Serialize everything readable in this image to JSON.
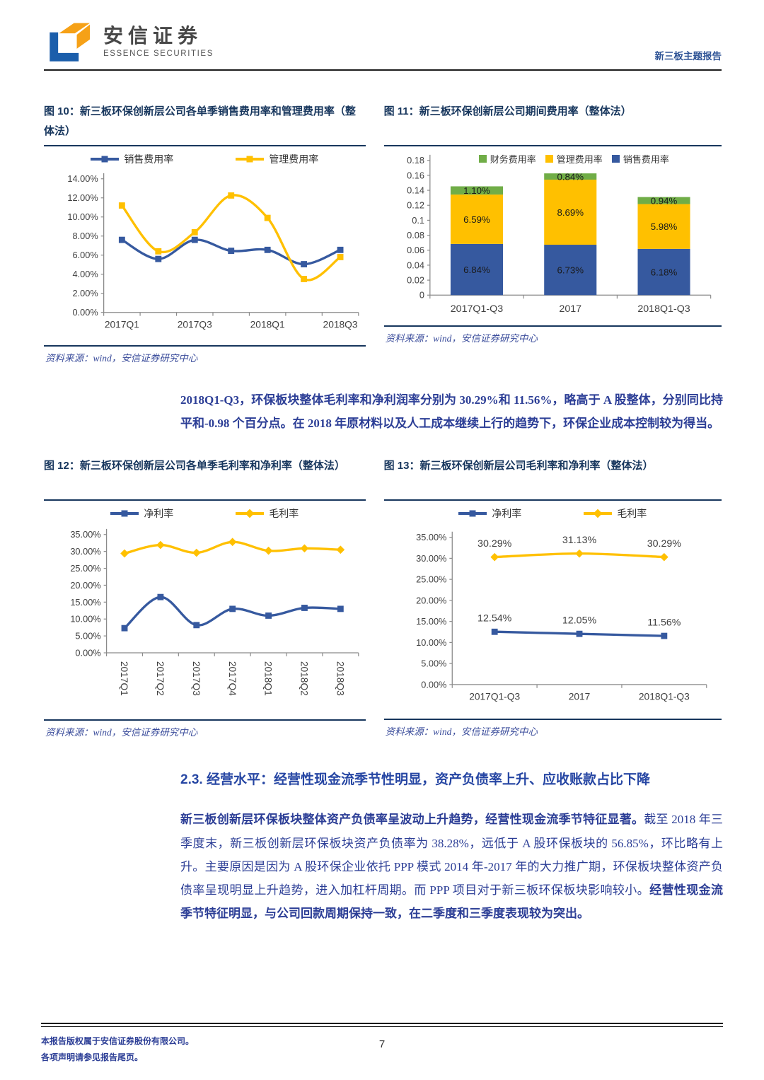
{
  "header": {
    "brand_cn": "安信证券",
    "brand_en": "ESSENCE SECURITIES",
    "report_tag": "新三板主题报告"
  },
  "figures": {
    "f10": {
      "title": "图 10：新三板环保创新层公司各单季销售费用率和管理费用率（整体法）",
      "source": "资料来源：wind，安信证券研究中心"
    },
    "f11": {
      "title": "图 11：新三板环保创新层公司期间费用率（整体法）",
      "source": "资料来源：wind，安信证券研究中心"
    },
    "f12": {
      "title": "图 12：新三板环保创新层公司各单季毛利率和净利率（整体法）",
      "source": "资料来源：wind，安信证券研究中心"
    },
    "f13": {
      "title": "图 13：新三板环保创新层公司毛利率和净利率（整体法）",
      "source": "资料来源：wind，安信证券研究中心"
    }
  },
  "paragraph1": "2018Q1-Q3，环保板块整体毛利率和净利润率分别为 30.29%和 11.56%，略高于 A 股整体，分别同比持平和-0.98 个百分点。在 2018 年原材料以及人工成本继续上行的趋势下，环保企业成本控制较为得当。",
  "section": {
    "title": "2.3. 经营水平：经营性现金流季节性明显，资产负债率上升、应收账款占比下降"
  },
  "paragraph2": {
    "bold1": "新三板创新层环保板块整体资产负债率呈波动上升趋势，经营性现金流季节特征显著。",
    "normal": "截至 2018 年三季度末，新三板创新层环保板块资产负债率为 38.28%，远低于 A 股环保板块的 56.85%，环比略有上升。主要原因是因为 A 股环保企业依托 PPP 模式 2014 年-2017 年的大力推广期，环保板块整体资产负债率呈现明显上升趋势，进入加杠杆周期。而 PPP 项目对于新三板环保板块影响较小。",
    "bold2": "经营性现金流季节特征明显，与公司回款周期保持一致，在二季度和三季度表现较为突出。"
  },
  "footer": {
    "line1": "本报告版权属于安信证券股份有限公司。",
    "line2": "各项声明请参见报告尾页。",
    "page": "7"
  },
  "chart_data": [
    {
      "id": "fig10",
      "type": "line",
      "title": "新三板环保创新层公司各单季销售费用率和管理费用率（整体法）",
      "categories": [
        "2017Q1",
        "2017Q2",
        "2017Q3",
        "2017Q4",
        "2018Q1",
        "2018Q2",
        "2018Q3"
      ],
      "series": [
        {
          "name": "销售费用率",
          "color": "#36599F",
          "marker": "square",
          "values": [
            7.6,
            5.6,
            7.6,
            6.45,
            6.55,
            5.05,
            6.55
          ]
        },
        {
          "name": "管理费用率",
          "color": "#FFC000",
          "marker": "square",
          "values": [
            11.2,
            6.4,
            8.4,
            12.25,
            9.9,
            3.5,
            5.8
          ]
        }
      ],
      "ylim": [
        0,
        14
      ],
      "ytick_step": 2,
      "y_format": "percent",
      "x_label_every": 2,
      "grid": false,
      "legend_position": "top"
    },
    {
      "id": "fig11",
      "type": "bar",
      "stacked": true,
      "title": "新三板环保创新层公司期间费用率（整体法）",
      "categories": [
        "2017Q1-Q3",
        "2017",
        "2018Q1-Q3"
      ],
      "series": [
        {
          "name": "销售费用率",
          "color": "#36599F",
          "values": [
            0.0684,
            0.0673,
            0.0618
          ],
          "labels": [
            "6.84%",
            "6.73%",
            "6.18%"
          ]
        },
        {
          "name": "管理费用率",
          "color": "#FFC000",
          "values": [
            0.0659,
            0.0869,
            0.0598
          ],
          "labels": [
            "6.59%",
            "8.69%",
            "5.98%"
          ]
        },
        {
          "name": "财务费用率",
          "color": "#70AD47",
          "values": [
            0.011,
            0.0084,
            0.0094
          ],
          "labels": [
            "1.10%",
            "0.84%",
            "0.94%"
          ]
        }
      ],
      "legend_order": [
        "财务费用率",
        "管理费用率",
        "销售费用率"
      ],
      "ylim": [
        0,
        0.18
      ],
      "ytick_step": 0.02,
      "y_format": "plain",
      "grid": false,
      "legend_position": "top-inside"
    },
    {
      "id": "fig12",
      "type": "line",
      "title": "新三板环保创新层公司各单季毛利率和净利率（整体法）",
      "categories": [
        "2017Q1",
        "2017Q2",
        "2017Q3",
        "2017Q4",
        "2018Q1",
        "2018Q2",
        "2018Q3"
      ],
      "series": [
        {
          "name": "净利率",
          "color": "#36599F",
          "marker": "square",
          "values": [
            7.3,
            16.5,
            8.2,
            13.0,
            11.0,
            13.3,
            13.0
          ]
        },
        {
          "name": "毛利率",
          "color": "#FFC000",
          "marker": "diamond",
          "values": [
            29.4,
            31.9,
            29.6,
            32.8,
            30.2,
            30.9,
            30.5
          ]
        }
      ],
      "ylim": [
        0,
        35
      ],
      "ytick_step": 5,
      "y_format": "percent",
      "x_label_rotate": true,
      "grid": false,
      "legend_position": "top"
    },
    {
      "id": "fig13",
      "type": "line",
      "title": "新三板环保创新层公司毛利率和净利率（整体法）",
      "categories": [
        "2017Q1-Q3",
        "2017",
        "2018Q1-Q3"
      ],
      "series": [
        {
          "name": "净利率",
          "color": "#36599F",
          "marker": "square",
          "values": [
            12.54,
            12.05,
            11.56
          ],
          "point_labels": [
            "12.54%",
            "12.05%",
            "11.56%"
          ]
        },
        {
          "name": "毛利率",
          "color": "#FFC000",
          "marker": "diamond",
          "values": [
            30.29,
            31.13,
            30.29
          ],
          "point_labels": [
            "30.29%",
            "31.13%",
            "30.29%"
          ]
        }
      ],
      "ylim": [
        0,
        35
      ],
      "ytick_step": 5,
      "y_format": "percent",
      "grid": false,
      "legend_position": "top"
    }
  ]
}
